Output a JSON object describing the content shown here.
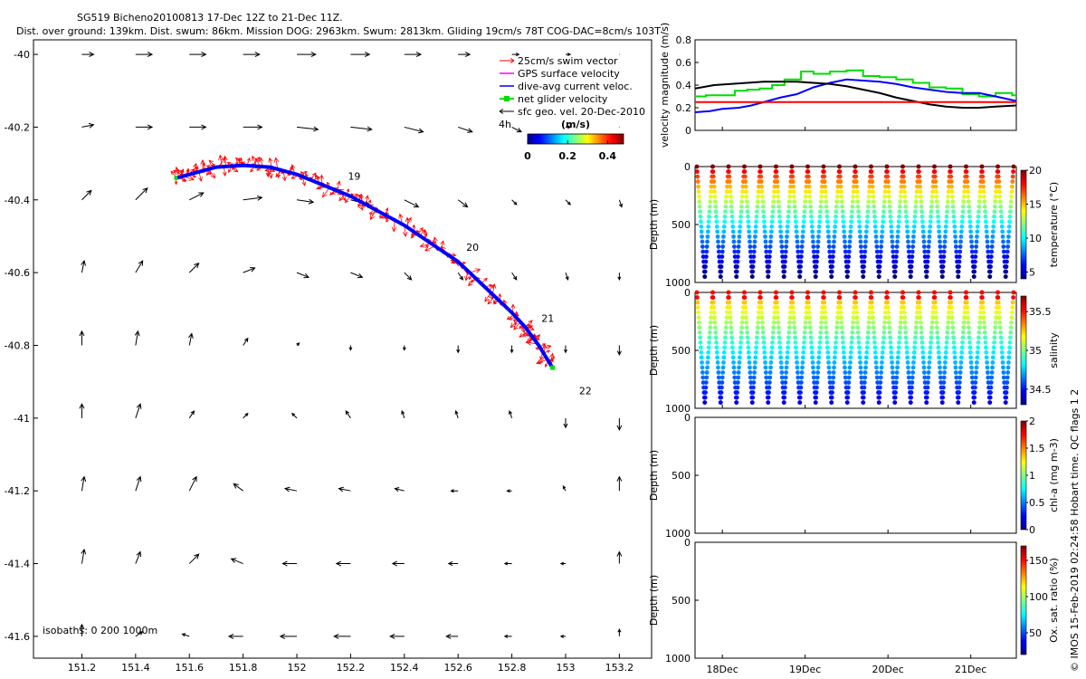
{
  "header": {
    "title": "SG519 Bicheno20100813 17-Dec 12Z to 21-Dec 11Z.",
    "subtitle": "Dist. over ground: 139km. Dist. swum: 86km. Mission DOG: 2963km. Swum: 2813km. Gliding 19cm/s 78T COG-DAC=8cm/s 103T"
  },
  "footer": {
    "credit": "© IMOS 15-Feb-2019 02:24:58 Hobart time. QC flags 1  2"
  },
  "colors": {
    "swim": "#ff0000",
    "gps": "#ff00ff",
    "dac": "#0000ff",
    "net": "#00dd00",
    "geo": "#000000",
    "track": "#0000ff",
    "threshold": "#ff0000"
  },
  "chart_data": [
    {
      "type": "scatter",
      "xlim": [
        151.02,
        153.32
      ],
      "ylim": [
        -41.66,
        -39.96
      ],
      "x_ticks": [
        151.2,
        151.4,
        151.6,
        151.8,
        152,
        152.2,
        152.4,
        152.6,
        152.8,
        153,
        153.2
      ],
      "x_tick_labels": [
        "151.2",
        "151.4",
        "151.6",
        "151.8",
        "152",
        "152.2",
        "152.4",
        "152.6",
        "152.8",
        "153",
        "153.2"
      ],
      "y_ticks": [
        -40,
        -40.2,
        -40.4,
        -40.6,
        -40.8,
        -41,
        -41.2,
        -41.4,
        -41.6
      ],
      "y_tick_labels": [
        "-40",
        "-40.2",
        "-40.4",
        "-40.6",
        "-40.8",
        "-41",
        "-41.2",
        "-41.4",
        "-41.6"
      ],
      "isobaths_label": "isobaths: 0   200  1000m",
      "legend": {
        "placement": "top-right",
        "items": [
          {
            "label": "25cm/s swim vector",
            "color": "#ff0000",
            "marker": "arrow"
          },
          {
            "label": "GPS surface velocity",
            "color": "#ff00ff",
            "marker": "line"
          },
          {
            "label": "dive-avg current veloc.",
            "color": "#0000ff",
            "marker": "line"
          },
          {
            "label": "net glider velocity",
            "color": "#00dd00",
            "marker": "square-line"
          },
          {
            "label": "sfc geo. vel. 20-Dec-2010",
            "color": "#000000",
            "marker": "arrow"
          }
        ]
      },
      "colorbar": {
        "label": "(m/s)",
        "extra_label": "4h",
        "range": [
          0,
          0.48
        ],
        "ticks": [
          0,
          0.2,
          0.4
        ],
        "tick_labels": [
          "0",
          "0.2",
          "0.4"
        ]
      },
      "track": {
        "lon": [
          151.55,
          151.6,
          151.7,
          151.8,
          151.9,
          152.0,
          152.1,
          152.2,
          152.3,
          152.4,
          152.5,
          152.6,
          152.7,
          152.8,
          152.85,
          152.9,
          152.95
        ],
        "lat": [
          -40.34,
          -40.33,
          -40.31,
          -40.305,
          -40.31,
          -40.33,
          -40.36,
          -40.39,
          -40.43,
          -40.47,
          -40.52,
          -40.57,
          -40.64,
          -40.71,
          -40.75,
          -40.8,
          -40.86
        ]
      },
      "day_labels": [
        {
          "text": "19",
          "lon": 152.19,
          "lat": -40.345
        },
        {
          "text": "20",
          "lon": 152.63,
          "lat": -40.54
        },
        {
          "text": "21",
          "lon": 152.91,
          "lat": -40.735
        },
        {
          "text": "22",
          "lon": 153.05,
          "lat": -40.935
        }
      ],
      "geo_vectors": {
        "lon": [
          151.2,
          151.4,
          151.6,
          151.8,
          152.0,
          152.2,
          152.4,
          152.6,
          152.8,
          153.0,
          153.2
        ],
        "lat": [
          -40.0,
          -40.2,
          -40.4,
          -40.6,
          -40.8,
          -41.0,
          -41.2,
          -41.4,
          -41.6
        ],
        "u": [
          [
            0.05,
            0.07,
            0.07,
            0.07,
            0.08,
            0.08,
            0.07,
            0.05,
            0.03,
            0.02,
            0.0
          ],
          [
            0.05,
            0.07,
            0.07,
            0.08,
            0.09,
            0.09,
            0.08,
            0.06,
            0.04,
            0.02,
            0.0
          ],
          [
            0.04,
            0.05,
            0.06,
            0.08,
            0.07,
            0.08,
            0.06,
            0.04,
            0.02,
            0.02,
            0.01
          ],
          [
            0.01,
            0.03,
            0.04,
            0.05,
            0.05,
            0.05,
            0.03,
            0.02,
            0.02,
            0.01,
            0.0
          ],
          [
            0.0,
            0.01,
            0.01,
            0.02,
            0.01,
            0.0,
            0.0,
            0.0,
            0.0,
            0.0,
            0.0
          ],
          [
            0.0,
            0.02,
            0.02,
            0.02,
            -0.02,
            -0.02,
            -0.01,
            -0.01,
            -0.01,
            0.0,
            0.0
          ],
          [
            0.01,
            0.02,
            0.03,
            -0.04,
            -0.05,
            -0.05,
            -0.04,
            -0.03,
            -0.02,
            -0.01,
            0.0
          ],
          [
            0.01,
            0.02,
            0.04,
            -0.05,
            -0.06,
            -0.06,
            -0.05,
            -0.04,
            -0.03,
            -0.02,
            0.0
          ],
          [
            0.0,
            0.03,
            -0.03,
            -0.06,
            -0.07,
            -0.07,
            -0.06,
            -0.05,
            -0.03,
            -0.02,
            0.0
          ]
        ],
        "v": [
          [
            0.0,
            0.0,
            0.0,
            0.0,
            0.0,
            0.0,
            0.0,
            0.0,
            0.0,
            0.0,
            0.0
          ],
          [
            0.01,
            0.0,
            0.0,
            0.0,
            -0.01,
            -0.01,
            -0.02,
            -0.02,
            -0.02,
            0.0,
            0.0
          ],
          [
            0.04,
            0.05,
            0.03,
            0.01,
            -0.01,
            -0.02,
            -0.03,
            -0.03,
            -0.02,
            -0.02,
            -0.03
          ],
          [
            0.05,
            0.05,
            0.04,
            0.02,
            -0.02,
            -0.02,
            -0.03,
            -0.03,
            -0.03,
            -0.03,
            -0.03
          ],
          [
            0.06,
            0.06,
            0.05,
            0.03,
            0.01,
            -0.02,
            -0.02,
            -0.03,
            -0.03,
            -0.03,
            -0.04
          ],
          [
            0.06,
            0.06,
            0.03,
            0.02,
            0.02,
            0.03,
            0.03,
            0.03,
            0.03,
            -0.04,
            -0.05
          ],
          [
            0.06,
            0.06,
            0.06,
            0.03,
            0.01,
            0.01,
            0.01,
            0.0,
            0.0,
            0.02,
            0.06
          ],
          [
            0.06,
            0.05,
            0.04,
            0.02,
            0.0,
            0.0,
            0.0,
            0.0,
            0.0,
            0.0,
            0.05
          ],
          [
            0.05,
            0.02,
            0.01,
            0.0,
            0.0,
            0.0,
            0.0,
            0.0,
            0.0,
            0.0,
            0.03
          ]
        ]
      }
    },
    {
      "type": "line",
      "ylabel": "velocity magnitude (m/s)",
      "xlim": [
        17.67,
        21.55
      ],
      "ylim": [
        0,
        0.8
      ],
      "y_ticks": [
        0,
        0.2,
        0.4,
        0.6,
        0.8
      ],
      "y_tick_labels": [
        "0",
        "0.2",
        "0.4",
        "0.6",
        "0.8"
      ],
      "x_ticks": [
        18,
        19,
        20,
        21
      ],
      "series": [
        {
          "color": "#00dd00",
          "step": true,
          "x": [
            17.67,
            17.8,
            18.0,
            18.15,
            18.3,
            18.45,
            18.6,
            18.75,
            18.95,
            19.1,
            19.3,
            19.5,
            19.7,
            19.9,
            20.1,
            20.3,
            20.5,
            20.7,
            20.9,
            21.1,
            21.3,
            21.5,
            21.55
          ],
          "y": [
            0.3,
            0.31,
            0.31,
            0.35,
            0.36,
            0.37,
            0.4,
            0.45,
            0.52,
            0.5,
            0.52,
            0.53,
            0.48,
            0.47,
            0.45,
            0.42,
            0.38,
            0.37,
            0.32,
            0.3,
            0.33,
            0.31,
            0.3
          ]
        },
        {
          "color": "#0000ff",
          "x": [
            17.67,
            17.85,
            18.0,
            18.2,
            18.35,
            18.5,
            18.7,
            18.9,
            19.1,
            19.3,
            19.5,
            19.7,
            19.9,
            20.1,
            20.3,
            20.5,
            20.7,
            20.9,
            21.1,
            21.3,
            21.55
          ],
          "y": [
            0.16,
            0.17,
            0.19,
            0.2,
            0.22,
            0.25,
            0.29,
            0.32,
            0.38,
            0.42,
            0.45,
            0.44,
            0.43,
            0.41,
            0.38,
            0.36,
            0.34,
            0.33,
            0.33,
            0.3,
            0.26
          ]
        },
        {
          "color": "#000000",
          "x": [
            17.67,
            17.9,
            18.1,
            18.3,
            18.5,
            18.7,
            18.9,
            19.1,
            19.3,
            19.5,
            19.7,
            19.9,
            20.1,
            20.3,
            20.5,
            20.7,
            20.9,
            21.1,
            21.3,
            21.55
          ],
          "y": [
            0.37,
            0.4,
            0.41,
            0.42,
            0.43,
            0.43,
            0.43,
            0.42,
            0.41,
            0.39,
            0.36,
            0.33,
            0.29,
            0.26,
            0.23,
            0.21,
            0.2,
            0.2,
            0.21,
            0.22
          ]
        },
        {
          "color": "#ff0000",
          "x": [
            17.67,
            21.55
          ],
          "y": [
            0.25,
            0.25
          ]
        }
      ]
    },
    {
      "type": "scatter",
      "ylabel": "Depth (m)",
      "clabel": "temperature (°C)",
      "ylim": [
        1000,
        0
      ],
      "y_ticks": [
        0,
        500,
        1000
      ],
      "y_tick_labels": [
        "0",
        "500",
        "1000"
      ],
      "x_ticks": [
        18,
        19,
        20,
        21
      ],
      "dives": 20,
      "max_depth": 950,
      "crange": [
        4,
        20
      ],
      "cticks": [
        5,
        10,
        15,
        20
      ],
      "ctick_labels": [
        "5",
        "10",
        "15",
        "20"
      ],
      "colormap": "jet"
    },
    {
      "type": "scatter",
      "ylabel": "Depth (m)",
      "clabel": "salinity",
      "ylim": [
        1000,
        0
      ],
      "y_ticks": [
        0,
        500,
        1000
      ],
      "y_tick_labels": [
        "0",
        "500",
        "1000"
      ],
      "x_ticks": [
        18,
        19,
        20,
        21
      ],
      "dives": 20,
      "max_depth": 950,
      "crange": [
        34.3,
        35.7
      ],
      "cticks": [
        34.5,
        35,
        35.5
      ],
      "ctick_labels": [
        "34.5",
        "35",
        "35.5"
      ],
      "colormap": "jet"
    },
    {
      "type": "scatter",
      "ylabel": "Depth (m)",
      "clabel": "chl-a (mg m-3)",
      "ylim": [
        1000,
        0
      ],
      "y_ticks": [
        0,
        500,
        1000
      ],
      "y_tick_labels": [
        "0",
        "500",
        "1000"
      ],
      "x_ticks": [
        18,
        19,
        20,
        21
      ],
      "crange": [
        0,
        2
      ],
      "cticks": [
        0,
        0.5,
        1,
        1.5,
        2
      ],
      "ctick_labels": [
        "0",
        "0.5",
        "1",
        "1.5",
        "2"
      ],
      "colormap": "jet"
    },
    {
      "type": "scatter",
      "ylabel": "Depth (m)",
      "clabel": "Ox. sat. ratio (%)",
      "ylim": [
        1000,
        0
      ],
      "y_ticks": [
        0,
        500,
        1000
      ],
      "y_tick_labels": [
        "0",
        "500",
        "1000"
      ],
      "x_ticks": [
        18,
        19,
        20,
        21
      ],
      "x_tick_labels": [
        "18Dec",
        "19Dec",
        "20Dec",
        "21Dec"
      ],
      "crange": [
        20,
        170
      ],
      "cticks": [
        50,
        100,
        150
      ],
      "ctick_labels": [
        "50",
        "100",
        "150"
      ],
      "colormap": "jet"
    }
  ]
}
